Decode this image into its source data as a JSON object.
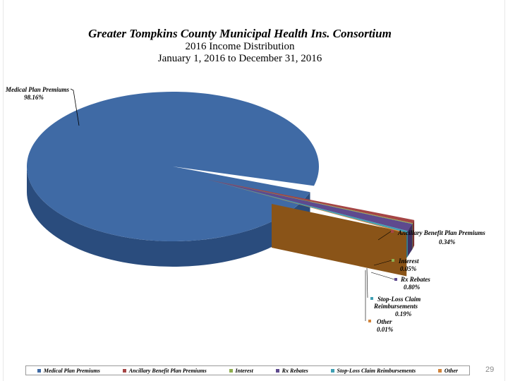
{
  "chart_data": {
    "type": "pie",
    "style": "3d-exploded",
    "title": "Greater Tompkins County Municipal Health Ins. Consortium",
    "subtitle": "2016 Income Distribution",
    "subtitle2": "January 1, 2016 to December 31, 2016",
    "slices": [
      {
        "name": "Medical Plan Premiums",
        "value": 98.16,
        "label": "98.16%",
        "color": "#3f6aa5",
        "side": "#2a4c7d"
      },
      {
        "name": "Ancillary Benefit Plan Premiums",
        "value": 0.34,
        "label": "0.34%",
        "color": "#a54545",
        "side": "#7a2e2e"
      },
      {
        "name": "Interest",
        "value": 0.05,
        "label": "0.05%",
        "color": "#8fae4f",
        "side": "#647c34"
      },
      {
        "name": "Rx Rebates",
        "value": 0.8,
        "label": "0.80%",
        "color": "#5e4a8e",
        "side": "#3f3063"
      },
      {
        "name": "Stop-Loss Claim Reimbursements",
        "value": 0.19,
        "label": "0.19%",
        "color": "#3f9fb3",
        "side": "#2b7283"
      },
      {
        "name": "Other",
        "value": 0.01,
        "label": "0.01%",
        "color": "#d2843a",
        "side": "#8a5418"
      }
    ],
    "data_labels": {
      "medical": {
        "l1": "Medical Plan Premiums",
        "l2": "98.16%"
      },
      "ancillary": {
        "l1": "Ancillary Benefit Plan Premiums",
        "l2": "0.34%"
      },
      "interest": {
        "l1": "Interest",
        "l2": "0.05%"
      },
      "rx": {
        "l1": "Rx Rebates",
        "l2": "0.80%"
      },
      "stoploss": {
        "l1": "Stop-Loss Claim",
        "l2": "Reimbursements",
        "l3": "0.19%"
      },
      "other": {
        "l1": "Other",
        "l2": "0.01%"
      }
    },
    "legend": {
      "position": "bottom"
    }
  },
  "page_number": "29"
}
